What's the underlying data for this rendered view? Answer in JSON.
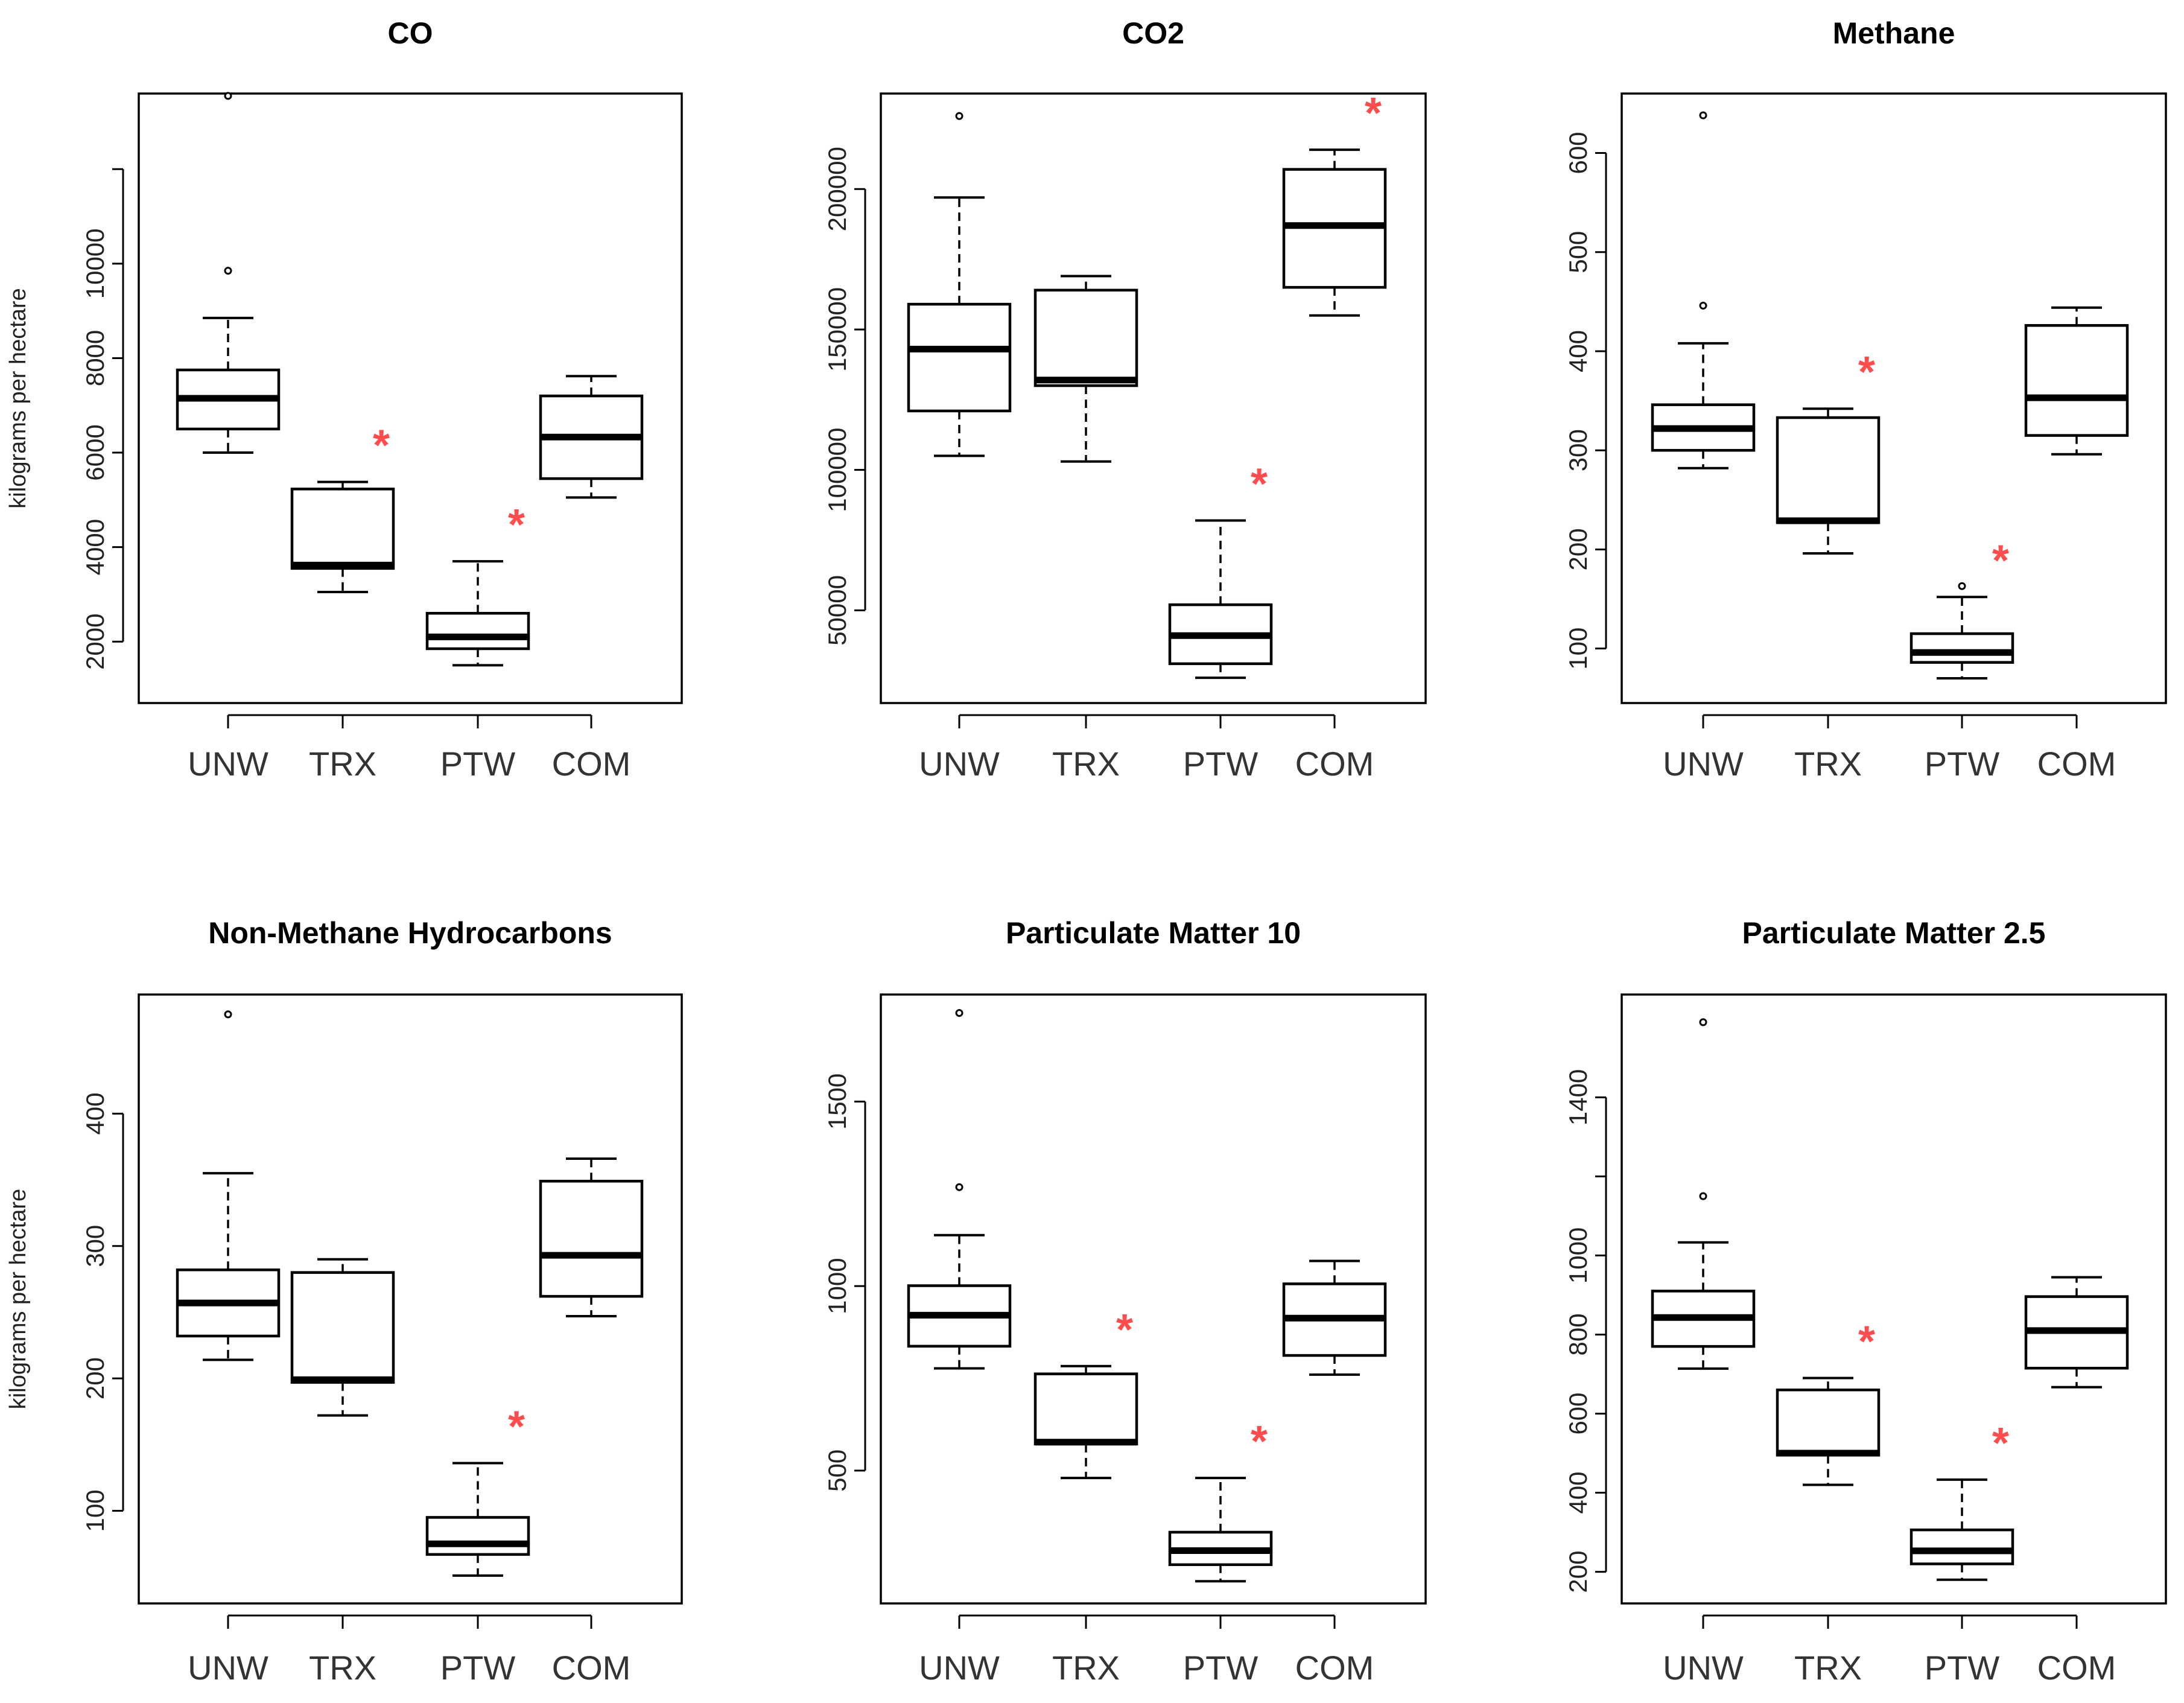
{
  "chart_data": [
    {
      "type": "boxplot",
      "title": "CO",
      "ylabel": "kilograms per hectare",
      "categories": [
        "UNW",
        "TRX",
        "PTW",
        "COM"
      ],
      "ylim": [
        700,
        13600
      ],
      "yticks": [
        2000,
        4000,
        6000,
        8000,
        10000
      ],
      "ytick_labels": [
        "2000",
        "4000",
        "6000",
        "8000",
        "10000"
      ],
      "extra_ticks": [
        12000
      ],
      "boxes": [
        {
          "whislo": 6000,
          "q1": 6500,
          "med": 7150,
          "q3": 7750,
          "whishi": 8850,
          "fliers": [
            9850,
            13550
          ],
          "sig": false
        },
        {
          "whislo": 3050,
          "q1": 3550,
          "med": 3620,
          "q3": 5230,
          "whishi": 5380,
          "fliers": [],
          "sig": true
        },
        {
          "whislo": 1500,
          "q1": 1850,
          "med": 2100,
          "q3": 2600,
          "whishi": 3700,
          "fliers": [],
          "sig": true
        },
        {
          "whislo": 5050,
          "q1": 5450,
          "med": 6330,
          "q3": 7200,
          "whishi": 7620,
          "fliers": [],
          "sig": false
        }
      ],
      "significance_marker": "*"
    },
    {
      "type": "boxplot",
      "title": "CO2",
      "ylabel": "",
      "categories": [
        "UNW",
        "TRX",
        "PTW",
        "COM"
      ],
      "ylim": [
        17000,
        234000
      ],
      "yticks": [
        50000,
        100000,
        150000,
        200000
      ],
      "ytick_labels": [
        "50000",
        "100000",
        "150000",
        "200000"
      ],
      "extra_ticks": [],
      "boxes": [
        {
          "whislo": 105000,
          "q1": 121000,
          "med": 143000,
          "q3": 159000,
          "whishi": 197000,
          "fliers": [
            226000
          ],
          "sig": false
        },
        {
          "whislo": 103000,
          "q1": 130000,
          "med": 132000,
          "q3": 164000,
          "whishi": 169000,
          "fliers": [],
          "sig": false
        },
        {
          "whislo": 26000,
          "q1": 31000,
          "med": 41000,
          "q3": 52000,
          "whishi": 82000,
          "fliers": [],
          "sig": true
        },
        {
          "whislo": 155000,
          "q1": 165000,
          "med": 187000,
          "q3": 207000,
          "whishi": 214000,
          "fliers": [],
          "sig": true
        }
      ],
      "significance_marker": "*"
    },
    {
      "type": "boxplot",
      "title": "Methane",
      "ylabel": "",
      "categories": [
        "UNW",
        "TRX",
        "PTW",
        "COM"
      ],
      "ylim": [
        45,
        660
      ],
      "yticks": [
        100,
        200,
        300,
        400,
        500,
        600
      ],
      "ytick_labels": [
        "100",
        "200",
        "300",
        "400",
        "500",
        "600"
      ],
      "extra_ticks": [],
      "boxes": [
        {
          "whislo": 282,
          "q1": 300,
          "med": 322,
          "q3": 346,
          "whishi": 408,
          "fliers": [
            446,
            638
          ],
          "sig": false
        },
        {
          "whislo": 196,
          "q1": 227,
          "med": 229,
          "q3": 333,
          "whishi": 342,
          "fliers": [],
          "sig": true
        },
        {
          "whislo": 70,
          "q1": 86,
          "med": 96,
          "q3": 115,
          "whishi": 152,
          "fliers": [
            163
          ],
          "sig": true
        },
        {
          "whislo": 296,
          "q1": 315,
          "med": 353,
          "q3": 426,
          "whishi": 444,
          "fliers": [],
          "sig": false
        }
      ],
      "significance_marker": "*"
    },
    {
      "type": "boxplot",
      "title": "Non-Methane Hydrocarbons",
      "ylabel": "kilograms per hectare",
      "categories": [
        "UNW",
        "TRX",
        "PTW",
        "COM"
      ],
      "ylim": [
        30,
        490
      ],
      "yticks": [
        100,
        200,
        300,
        400
      ],
      "ytick_labels": [
        "100",
        "200",
        "300",
        "400"
      ],
      "extra_ticks": [],
      "boxes": [
        {
          "whislo": 214,
          "q1": 232,
          "med": 257,
          "q3": 282,
          "whishi": 355,
          "fliers": [
            475
          ],
          "sig": false
        },
        {
          "whislo": 172,
          "q1": 197,
          "med": 199,
          "q3": 280,
          "whishi": 290,
          "fliers": [],
          "sig": false
        },
        {
          "whislo": 51,
          "q1": 67,
          "med": 75,
          "q3": 95,
          "whishi": 136,
          "fliers": [],
          "sig": true
        },
        {
          "whislo": 247,
          "q1": 262,
          "med": 293,
          "q3": 349,
          "whishi": 366,
          "fliers": [],
          "sig": false
        }
      ],
      "significance_marker": "*"
    },
    {
      "type": "boxplot",
      "title": "Particulate Matter 10",
      "ylabel": "",
      "categories": [
        "UNW",
        "TRX",
        "PTW",
        "COM"
      ],
      "ylim": [
        140,
        1790
      ],
      "yticks": [
        500,
        1000,
        1500
      ],
      "ytick_labels": [
        "500",
        "1000",
        "1500"
      ],
      "extra_ticks": [],
      "boxes": [
        {
          "whislo": 777,
          "q1": 837,
          "med": 921,
          "q3": 1001,
          "whishi": 1138,
          "fliers": [
            1268,
            1740
          ],
          "sig": false
        },
        {
          "whislo": 480,
          "q1": 572,
          "med": 577,
          "q3": 762,
          "whishi": 783,
          "fliers": [],
          "sig": true
        },
        {
          "whislo": 200,
          "q1": 245,
          "med": 283,
          "q3": 333,
          "whishi": 480,
          "fliers": [],
          "sig": true
        },
        {
          "whislo": 760,
          "q1": 812,
          "med": 913,
          "q3": 1006,
          "whishi": 1068,
          "fliers": [],
          "sig": false
        }
      ],
      "significance_marker": "*"
    },
    {
      "type": "boxplot",
      "title": "Particulate Matter 2.5",
      "ylabel": "",
      "categories": [
        "UNW",
        "TRX",
        "PTW",
        "COM"
      ],
      "ylim": [
        120,
        1660
      ],
      "yticks": [
        200,
        400,
        600,
        800,
        1000,
        1400
      ],
      "ytick_labels": [
        "200",
        "400",
        "600",
        "800",
        "1000",
        "1400"
      ],
      "extra_ticks": [
        1200
      ],
      "boxes": [
        {
          "whislo": 714,
          "q1": 770,
          "med": 843,
          "q3": 910,
          "whishi": 1033,
          "fliers": [
            1150,
            1590
          ],
          "sig": false
        },
        {
          "whislo": 420,
          "q1": 495,
          "med": 500,
          "q3": 660,
          "whishi": 690,
          "fliers": [],
          "sig": true
        },
        {
          "whislo": 180,
          "q1": 220,
          "med": 253,
          "q3": 306,
          "whishi": 433,
          "fliers": [],
          "sig": true
        },
        {
          "whislo": 667,
          "q1": 715,
          "med": 810,
          "q3": 896,
          "whishi": 945,
          "fliers": [],
          "sig": false
        }
      ],
      "significance_marker": "*"
    }
  ]
}
